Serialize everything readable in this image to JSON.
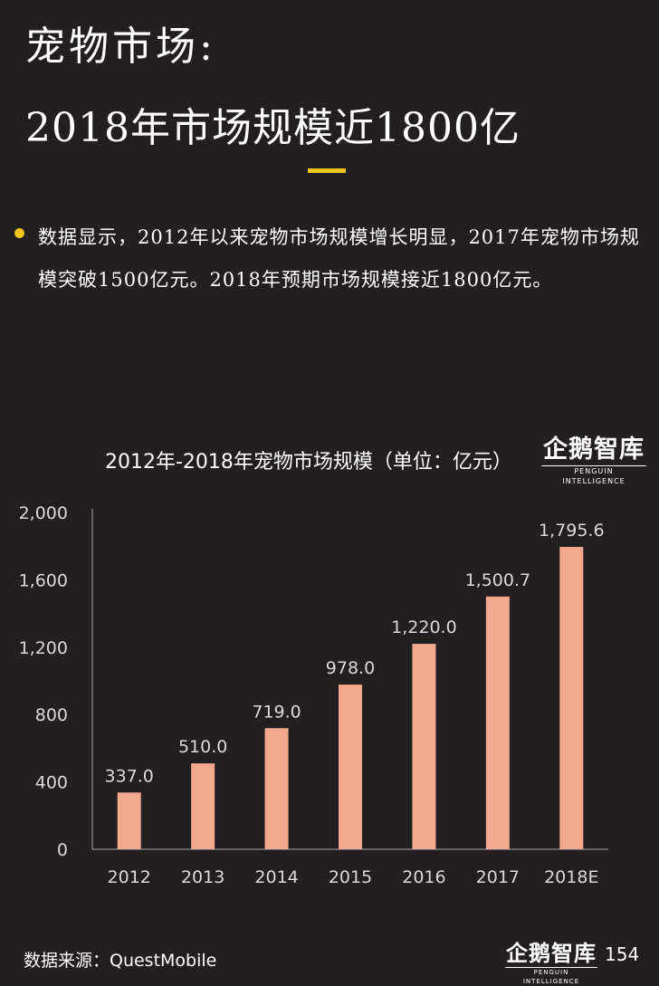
{
  "header": {
    "title_line1": "宠物市场:",
    "title_line2": "2018年市场规模近1800亿",
    "accent_color": "#f0c419"
  },
  "bullet": {
    "text": "数据显示，2012年以来宠物市场规模增长明显，2017年宠物市场规模突破1500亿元。2018年预期市场规模接近1800亿元。"
  },
  "logo": {
    "name": "企鹅智库",
    "subtitle": "PENGUIN INTELLIGENCE"
  },
  "footer": {
    "source": "数据来源：QuestMobile",
    "page_number": "154"
  },
  "chart_data": {
    "type": "bar",
    "title": "2012年-2018年宠物市场规模（单位：亿元）",
    "categories": [
      "2012",
      "2013",
      "2014",
      "2015",
      "2016",
      "2017",
      "2018E"
    ],
    "values": [
      337.0,
      510.0,
      719.0,
      978.0,
      1220.0,
      1500.7,
      1795.6
    ],
    "value_labels": [
      "337.0",
      "510.0",
      "719.0",
      "978.0",
      "1,220.0",
      "1,500.7",
      "1,795.6"
    ],
    "y_ticks": [
      0,
      400,
      800,
      1200,
      1600,
      2000
    ],
    "y_tick_labels": [
      "0",
      "400",
      "800",
      "1,200",
      "1,600",
      "2,000"
    ],
    "ylim": [
      0,
      2000
    ],
    "xlabel": "",
    "ylabel": "",
    "grid": false,
    "bar_color": "#f4a98f",
    "axis_color": "#a6a6a6"
  }
}
